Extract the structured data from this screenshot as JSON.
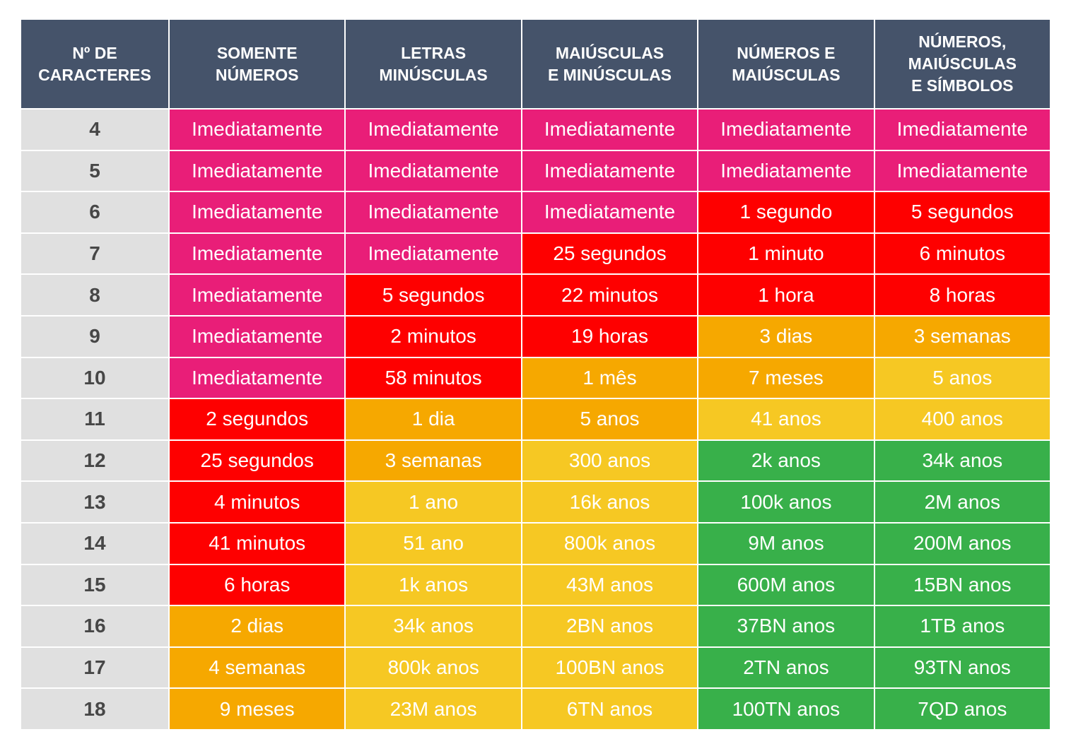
{
  "table": {
    "header": [
      "Nº DE\nCARACTERES",
      "SOMENTE\nNÚMEROS",
      "LETRAS\nMINÚSCULAS",
      "MAIÚSCULAS\nE MINÚSCULAS",
      "NÚMEROS E\nMAIÚSCULAS",
      "NÚMEROS,\nMAIÚSCULAS\nE SÍMBOLOS"
    ],
    "rows": [
      [
        "4",
        "Imediatamente",
        "Imediatamente",
        "Imediatamente",
        "Imediatamente",
        "Imediatamente"
      ],
      [
        "5",
        "Imediatamente",
        "Imediatamente",
        "Imediatamente",
        "Imediatamente",
        "Imediatamente"
      ],
      [
        "6",
        "Imediatamente",
        "Imediatamente",
        "Imediatamente",
        "1 segundo",
        "5 segundos"
      ],
      [
        "7",
        "Imediatamente",
        "Imediatamente",
        "25 segundos",
        "1 minuto",
        "6 minutos"
      ],
      [
        "8",
        "Imediatamente",
        "5 segundos",
        "22 minutos",
        "1 hora",
        "8 horas"
      ],
      [
        "9",
        "Imediatamente",
        "2 minutos",
        "19 horas",
        "3 dias",
        "3 semanas"
      ],
      [
        "10",
        "Imediatamente",
        "58 minutos",
        "1 mês",
        "7 meses",
        "5 anos"
      ],
      [
        "11",
        "2 segundos",
        "1 dia",
        "5 anos",
        "41 anos",
        "400 anos"
      ],
      [
        "12",
        "25 segundos",
        "3 semanas",
        "300 anos",
        "2k anos",
        "34k anos"
      ],
      [
        "13",
        "4 minutos",
        "1 ano",
        "16k anos",
        "100k anos",
        "2M anos"
      ],
      [
        "14",
        "41 minutos",
        "51 ano",
        "800k anos",
        "9M anos",
        "200M anos"
      ],
      [
        "15",
        "6 horas",
        "1k anos",
        "43M anos",
        "600M anos",
        "15BN anos"
      ],
      [
        "16",
        "2 dias",
        "34k anos",
        "2BN anos",
        "37BN anos",
        "1TB anos"
      ],
      [
        "17",
        "4 semanas",
        "800k anos",
        "100BN anos",
        "2TN anos",
        "93TN anos"
      ],
      [
        "18",
        "9 meses",
        "23M anos",
        "6TN anos",
        "100TN anos",
        "7QD anos"
      ]
    ],
    "cell_colors": [
      [
        "#e91e78",
        "#e91e78",
        "#e91e78",
        "#e91e78",
        "#e91e78"
      ],
      [
        "#e91e78",
        "#e91e78",
        "#e91e78",
        "#e91e78",
        "#e91e78"
      ],
      [
        "#e91e78",
        "#e91e78",
        "#e91e78",
        "#fe0000",
        "#fe0000"
      ],
      [
        "#e91e78",
        "#e91e78",
        "#fe0000",
        "#fe0000",
        "#fe0000"
      ],
      [
        "#e91e78",
        "#fe0000",
        "#fe0000",
        "#fe0000",
        "#fe0000"
      ],
      [
        "#e91e78",
        "#fe0000",
        "#fe0000",
        "#f6a800",
        "#f6a800"
      ],
      [
        "#e91e78",
        "#fe0000",
        "#f6a800",
        "#f6a800",
        "#f6c823"
      ],
      [
        "#fe0000",
        "#f6a800",
        "#f6a800",
        "#f6c823",
        "#f6c823"
      ],
      [
        "#fe0000",
        "#f6a800",
        "#f6c823",
        "#38b04a",
        "#38b04a"
      ],
      [
        "#fe0000",
        "#f6c823",
        "#f6c823",
        "#38b04a",
        "#38b04a"
      ],
      [
        "#fe0000",
        "#f6c823",
        "#f6c823",
        "#38b04a",
        "#38b04a"
      ],
      [
        "#fe0000",
        "#f6c823",
        "#f6c823",
        "#38b04a",
        "#38b04a"
      ],
      [
        "#f6a800",
        "#f6c823",
        "#f6c823",
        "#38b04a",
        "#38b04a"
      ],
      [
        "#f6a800",
        "#f6c823",
        "#f6c823",
        "#38b04a",
        "#38b04a"
      ],
      [
        "#f6a800",
        "#f6c823",
        "#f6c823",
        "#38b04a",
        "#38b04a"
      ]
    ]
  }
}
